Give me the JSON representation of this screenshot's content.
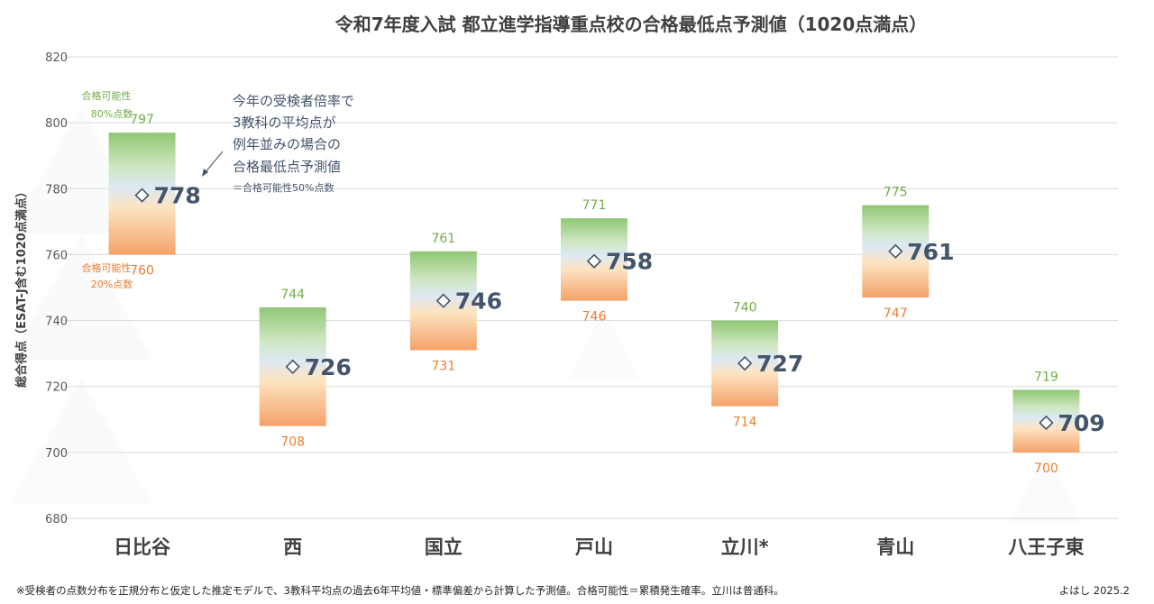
{
  "title": "令和7年度入試 都立進学指導重点校の合格最低点予測値（1020点満点）",
  "footnote": "※受検者の点数分布を正規分布と仮定した推定モデルで、3教科平均点の過去6年平均値・標準偏差から計算した予測値。合格可能性＝累積発生確率。立川は普通科。",
  "credit": "よはし 2025.2",
  "annotation": {
    "high_label_1": "合格可能性",
    "high_label_2": "80%点数",
    "low_label_1": "合格可能性",
    "low_label_2": "20%点数",
    "note_lines": [
      "今年の受検者倍率で",
      "3教科の平均点が",
      "例年並みの場合の",
      "合格最低点予測値"
    ],
    "note_small": "＝合格可能性50%点数"
  },
  "colors": {
    "green": "#70ad47",
    "orange": "#ed7d31",
    "marker": "#44546a",
    "grid": "#d9d9d9"
  },
  "chart_data": {
    "type": "floating-bar",
    "title": "令和7年度入試 都立進学指導重点校の合格最低点予測値（1020点満点）",
    "ylabel": "総合得点（ESAT-J含む1020点満点）",
    "ylim": [
      680,
      820
    ],
    "yticks": [
      680,
      700,
      720,
      740,
      760,
      780,
      800,
      820
    ],
    "grid": true,
    "categories": [
      "日比谷",
      "西",
      "国立",
      "戸山",
      "立川*",
      "青山",
      "八王子東"
    ],
    "series": [
      {
        "name": "合格可能性80%点数",
        "values": [
          797,
          744,
          761,
          771,
          740,
          775,
          719
        ]
      },
      {
        "name": "合格可能性20%点数",
        "values": [
          760,
          708,
          731,
          746,
          714,
          747,
          700
        ]
      },
      {
        "name": "合格可能性50%点数",
        "values": [
          778,
          726,
          746,
          758,
          727,
          761,
          709
        ]
      }
    ]
  }
}
